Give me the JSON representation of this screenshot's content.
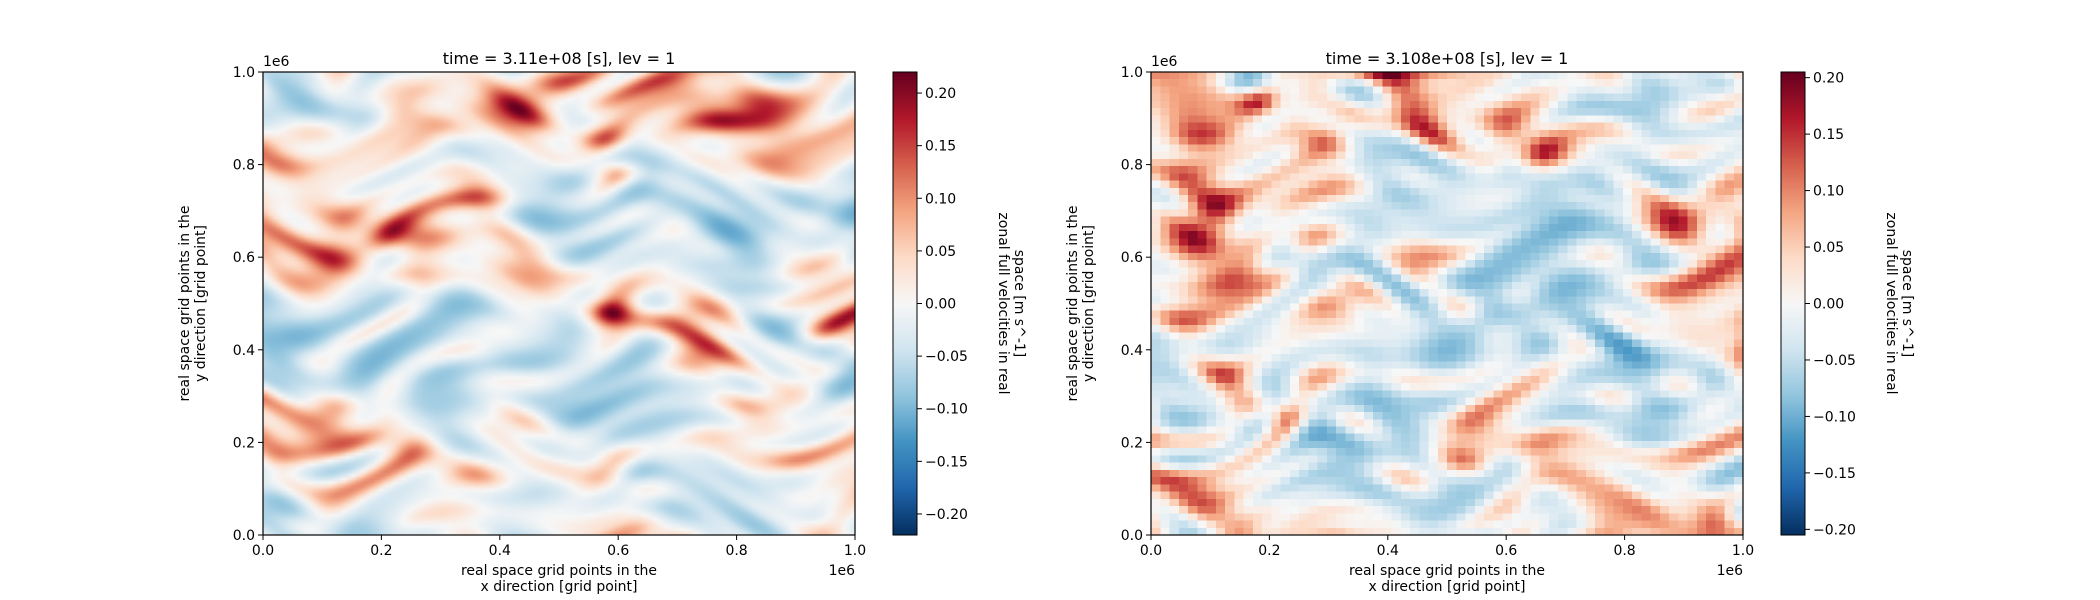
{
  "chart_data": [
    {
      "type": "heatmap",
      "title": "time = 3.11e+08 [s], lev = 1",
      "xlabel": [
        "real space grid points in the",
        "x direction [grid point]"
      ],
      "ylabel": [
        "real space grid points in the",
        "y direction [grid point]"
      ],
      "x_offset_label": "1e6",
      "y_offset_label": "1e6",
      "xlim": [
        0,
        1.0
      ],
      "ylim": [
        0,
        1.0
      ],
      "xticks": [
        "0.0",
        "0.2",
        "0.4",
        "0.6",
        "0.8",
        "1.0"
      ],
      "yticks": [
        "0.0",
        "0.2",
        "0.4",
        "0.6",
        "0.8",
        "1.0"
      ],
      "colormap": "RdBu_r",
      "colorbar": {
        "label": [
          "zonal full velocities in real",
          "space [m s^-1]"
        ],
        "vmin": -0.22,
        "vmax": 0.22,
        "ticks": [
          -0.2,
          -0.15,
          -0.1,
          -0.05,
          0.0,
          0.05,
          0.1,
          0.15,
          0.2
        ],
        "tick_labels": [
          "−0.20",
          "−0.15",
          "−0.10",
          "−0.05",
          "0.00",
          "0.05",
          "0.10",
          "0.15",
          "0.20"
        ]
      },
      "grid_resolution": 128,
      "seed": 11
    },
    {
      "type": "heatmap",
      "title": "time = 3.108e+08 [s], lev = 1",
      "xlabel": [
        "real space grid points in the",
        "x direction [grid point]"
      ],
      "ylabel": [
        "real space grid points in the",
        "y direction [grid point]"
      ],
      "x_offset_label": "1e6",
      "y_offset_label": "1e6",
      "xlim": [
        0,
        1.0
      ],
      "ylim": [
        0,
        1.0
      ],
      "xticks": [
        "0.0",
        "0.2",
        "0.4",
        "0.6",
        "0.8",
        "1.0"
      ],
      "yticks": [
        "0.0",
        "0.2",
        "0.4",
        "0.6",
        "0.8",
        "1.0"
      ],
      "colormap": "RdBu_r",
      "colorbar": {
        "label": [
          "zonal full velocities in real",
          "space [m s^-1]"
        ],
        "vmin": -0.205,
        "vmax": 0.205,
        "ticks": [
          -0.2,
          -0.15,
          -0.1,
          -0.05,
          0.0,
          0.05,
          0.1,
          0.15,
          0.2
        ],
        "tick_labels": [
          "−0.20",
          "−0.15",
          "−0.10",
          "−0.05",
          "0.00",
          "0.05",
          "0.10",
          "0.15",
          "0.20"
        ]
      },
      "grid_resolution": 64,
      "seed": 37
    }
  ]
}
